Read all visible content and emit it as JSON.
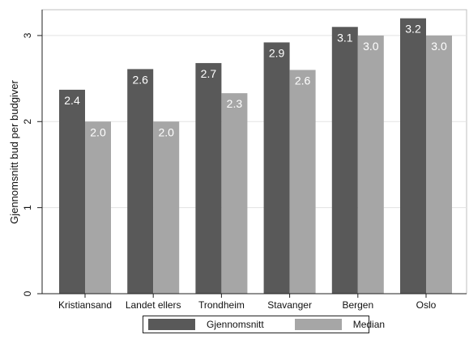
{
  "chart_data": {
    "type": "bar",
    "categories": [
      "Kristiansand",
      "Landet ellers",
      "Trondheim",
      "Stavanger",
      "Bergen",
      "Oslo"
    ],
    "series": [
      {
        "name": "Gjennomsnitt",
        "values": [
          2.37,
          2.61,
          2.68,
          2.92,
          3.1,
          3.2
        ],
        "labels": [
          "2.4",
          "2.6",
          "2.7",
          "2.9",
          "3.1",
          "3.2"
        ],
        "color": "#595959"
      },
      {
        "name": "Median",
        "values": [
          2.0,
          2.0,
          2.33,
          2.6,
          3.0,
          3.0
        ],
        "labels": [
          "2.0",
          "2.0",
          "2.3",
          "2.6",
          "3.0",
          "3.0"
        ],
        "color": "#a6a6a6"
      }
    ],
    "ylabel": "Gjennomsnitt bud per budgiver",
    "xlabel": "",
    "title": "",
    "ylim": [
      0,
      3.3
    ],
    "yticks": [
      0,
      1,
      2,
      3
    ],
    "ytick_labels": [
      "0",
      "1",
      "2",
      "3"
    ],
    "grid": true,
    "legend_position": "bottom",
    "data_label_color": "#ffffff"
  }
}
